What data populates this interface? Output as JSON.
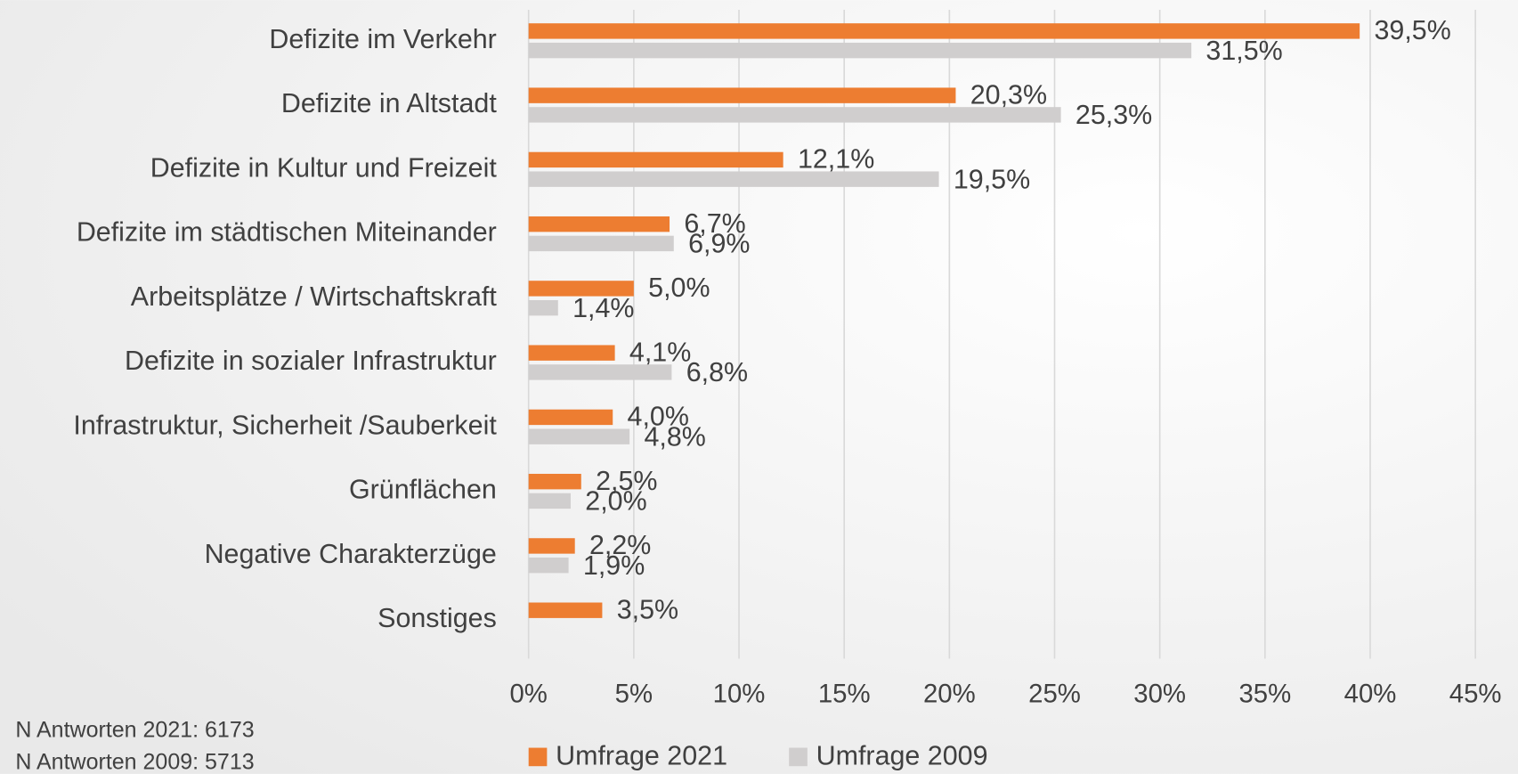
{
  "chart_data": {
    "type": "barh",
    "categories": [
      "Defizite im Verkehr",
      "Defizite in Altstadt",
      "Defizite in Kultur und Freizeit",
      "Defizite im städtischen Miteinander",
      "Arbeitsplätze / Wirtschaftskraft",
      "Defizite in sozialer Infrastruktur",
      "Infrastruktur, Sicherheit /Sauberkeit",
      "Grünflächen",
      "Negative Charakterzüge",
      "Sonstiges"
    ],
    "series": [
      {
        "name": "Umfrage 2021",
        "color": "#ed7d31",
        "values": [
          39.5,
          20.3,
          12.1,
          6.7,
          5.0,
          4.1,
          4.0,
          2.5,
          2.2,
          3.5
        ],
        "value_labels": [
          "39,5%",
          "20,3%",
          "12,1%",
          "6,7%",
          "5,0%",
          "4,1%",
          "4,0%",
          "2,5%",
          "2,2%",
          "3,5%"
        ]
      },
      {
        "name": "Umfrage 2009",
        "color": "#d0cece",
        "values": [
          31.5,
          25.3,
          19.5,
          6.9,
          1.4,
          6.8,
          4.8,
          2.0,
          1.9,
          null
        ],
        "value_labels": [
          "31,5%",
          "25,3%",
          "19,5%",
          "6,9%",
          "1,4%",
          "6,8%",
          "4,8%",
          "2,0%",
          "1,9%",
          null
        ]
      }
    ],
    "xlim": [
      0,
      45
    ],
    "xticks": [
      {
        "value": 0,
        "label": "0%"
      },
      {
        "value": 5,
        "label": "5%"
      },
      {
        "value": 10,
        "label": "10%"
      },
      {
        "value": 15,
        "label": "15%"
      },
      {
        "value": 20,
        "label": "20%"
      },
      {
        "value": 25,
        "label": "25%"
      },
      {
        "value": 30,
        "label": "30%"
      },
      {
        "value": 35,
        "label": "35%"
      },
      {
        "value": 40,
        "label": "40%"
      },
      {
        "value": 45,
        "label": "45%"
      }
    ],
    "grid": true,
    "legend": "bottom",
    "notes": [
      "N Antworten 2021: 6173",
      "N Antworten 2009: 5713"
    ]
  }
}
